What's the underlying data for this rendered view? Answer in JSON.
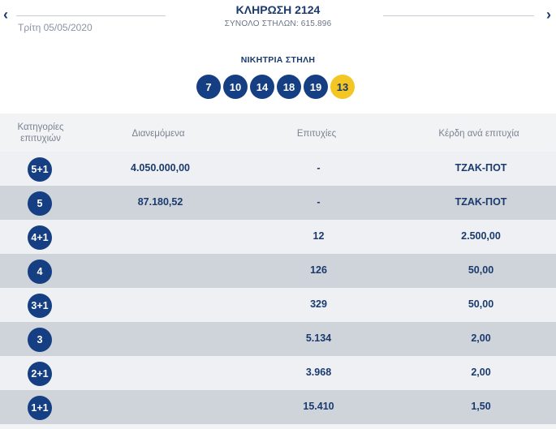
{
  "header": {
    "prev_label": "‹",
    "next_label": "›",
    "date": "Τρίτη 05/05/2020",
    "title": "ΚΛΗΡΩΣΗ 2124",
    "subtitle": "ΣΥΝΟΛΟ ΣΤΗΛΩΝ: 615.896"
  },
  "winning": {
    "label": "ΝΙΚΗΤΡΙΑ ΣΤΗΛΗ",
    "numbers": [
      "7",
      "10",
      "14",
      "18",
      "19"
    ],
    "bonus": "13",
    "colors": {
      "ball": "#153f82",
      "bonus": "#f3c623"
    }
  },
  "table": {
    "headers": {
      "category": "Κατηγορίες επιτυχιών",
      "distributed": "Διανεμόμενα",
      "winners": "Επιτυχίες",
      "prize": "Κέρδη ανά επιτυχία"
    },
    "rows": [
      {
        "category": "5+1",
        "distributed": "4.050.000,00",
        "winners": "-",
        "prize": "ΤΖΑΚ-ΠΟΤ"
      },
      {
        "category": "5",
        "distributed": "87.180,52",
        "winners": "-",
        "prize": "ΤΖΑΚ-ΠΟΤ"
      },
      {
        "category": "4+1",
        "distributed": "",
        "winners": "12",
        "prize": "2.500,00"
      },
      {
        "category": "4",
        "distributed": "",
        "winners": "126",
        "prize": "50,00"
      },
      {
        "category": "3+1",
        "distributed": "",
        "winners": "329",
        "prize": "50,00"
      },
      {
        "category": "3",
        "distributed": "",
        "winners": "5.134",
        "prize": "2,00"
      },
      {
        "category": "2+1",
        "distributed": "",
        "winners": "3.968",
        "prize": "2,00"
      },
      {
        "category": "1+1",
        "distributed": "",
        "winners": "15.410",
        "prize": "1,50"
      }
    ]
  }
}
